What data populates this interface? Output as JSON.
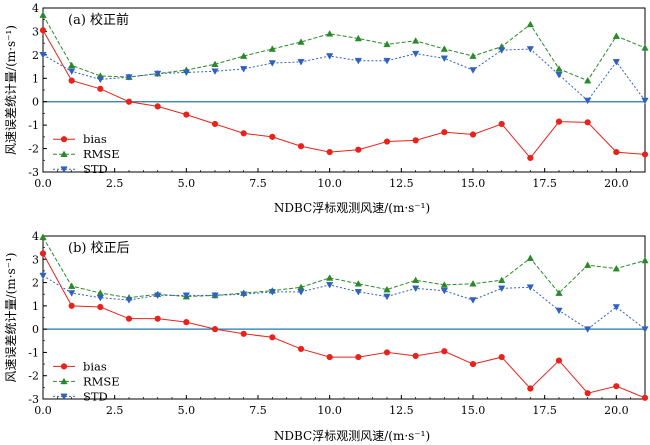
{
  "chart_data": [
    {
      "type": "line",
      "title": "(a) 校正前",
      "xlabel": "NDBC浮标观测风速/(m·s⁻¹)",
      "ylabel": "风速误差统计量/(m·s⁻¹)",
      "xlim": [
        0,
        21
      ],
      "ylim": [
        -3,
        4
      ],
      "xticks": [
        "0.0",
        "2.5",
        "5.0",
        "7.5",
        "10.0",
        "12.5",
        "15.0",
        "17.5",
        "20.0"
      ],
      "yticks": [
        "4",
        "3",
        "2",
        "1",
        "0",
        "-1",
        "-2",
        "-3"
      ],
      "legend_position": "lower-left",
      "x": [
        0,
        1,
        2,
        3,
        4,
        5,
        6,
        7,
        8,
        9,
        10,
        11,
        12,
        13,
        14,
        15,
        16,
        17,
        18,
        19,
        20,
        21
      ],
      "series": [
        {
          "name": "bias",
          "color": "#e8231b",
          "marker": "circle",
          "values": [
            3.05,
            0.9,
            0.55,
            0.0,
            -0.2,
            -0.55,
            -0.95,
            -1.35,
            -1.5,
            -1.9,
            -2.15,
            -2.05,
            -1.7,
            -1.65,
            -1.3,
            -1.4,
            -0.95,
            -2.4,
            -0.85,
            -0.88,
            -2.15,
            -2.25
          ]
        },
        {
          "name": "RMSE",
          "color": "#2a8a2a",
          "marker": "triangle",
          "values": [
            3.7,
            1.55,
            1.1,
            1.05,
            1.2,
            1.35,
            1.6,
            1.95,
            2.25,
            2.55,
            2.9,
            2.7,
            2.45,
            2.6,
            2.25,
            1.95,
            2.35,
            3.3,
            1.4,
            0.9,
            2.8,
            2.3
          ]
        },
        {
          "name": "STD",
          "color": "#3060c0",
          "marker": "triangle-down",
          "values": [
            2.0,
            1.3,
            0.95,
            1.05,
            1.2,
            1.25,
            1.3,
            1.4,
            1.65,
            1.7,
            1.95,
            1.75,
            1.75,
            2.05,
            1.85,
            1.35,
            2.2,
            2.25,
            1.15,
            0.05,
            1.7,
            0.05
          ]
        }
      ]
    },
    {
      "type": "line",
      "title": "(b) 校正后",
      "xlabel": "NDBC浮标观测风速/(m·s⁻¹)",
      "ylabel": "风速误差统计量/(m·s⁻¹)",
      "xlim": [
        0,
        21
      ],
      "ylim": [
        -3,
        4
      ],
      "xticks": [
        "0.0",
        "2.5",
        "5.0",
        "7.5",
        "10.0",
        "12.5",
        "15.0",
        "17.5",
        "20.0"
      ],
      "yticks": [
        "4",
        "3",
        "2",
        "1",
        "0",
        "-1",
        "-2",
        "-3"
      ],
      "legend_position": "lower-left",
      "x": [
        0,
        1,
        2,
        3,
        4,
        5,
        6,
        7,
        8,
        9,
        10,
        11,
        12,
        13,
        14,
        15,
        16,
        17,
        18,
        19,
        20,
        21
      ],
      "series": [
        {
          "name": "bias",
          "color": "#e8231b",
          "marker": "circle",
          "values": [
            3.25,
            1.0,
            0.95,
            0.45,
            0.45,
            0.3,
            0.0,
            -0.2,
            -0.35,
            -0.85,
            -1.2,
            -1.2,
            -1.0,
            -1.15,
            -0.95,
            -1.5,
            -1.2,
            -2.55,
            -1.35,
            -2.75,
            -2.45,
            -2.95
          ]
        },
        {
          "name": "RMSE",
          "color": "#2a8a2a",
          "marker": "triangle",
          "values": [
            3.95,
            1.85,
            1.55,
            1.35,
            1.5,
            1.4,
            1.45,
            1.55,
            1.65,
            1.8,
            2.2,
            1.95,
            1.7,
            2.1,
            1.9,
            1.95,
            2.1,
            3.05,
            1.55,
            2.75,
            2.6,
            2.95
          ]
        },
        {
          "name": "STD",
          "color": "#3060c0",
          "marker": "triangle-down",
          "values": [
            2.3,
            1.55,
            1.35,
            1.25,
            1.45,
            1.45,
            1.45,
            1.5,
            1.6,
            1.6,
            1.9,
            1.6,
            1.4,
            1.75,
            1.65,
            1.25,
            1.75,
            1.8,
            0.8,
            0.0,
            0.95,
            0.0
          ]
        }
      ]
    }
  ]
}
